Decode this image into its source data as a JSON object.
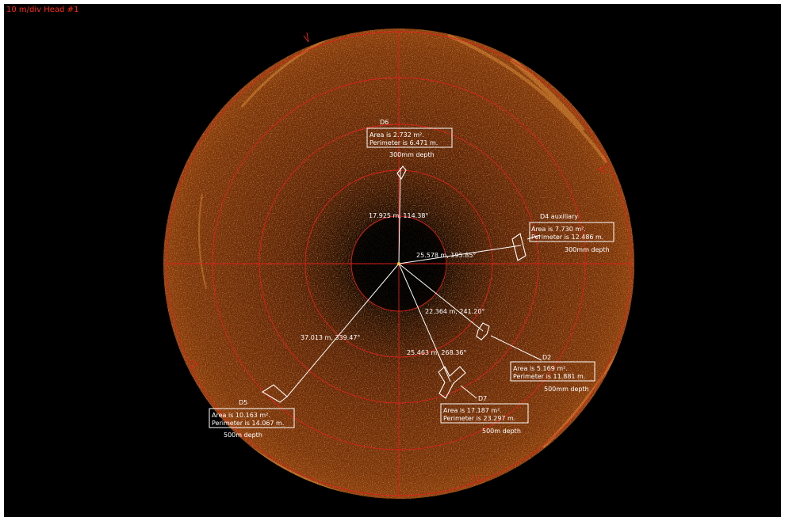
{
  "header": {
    "scale_label": "10 m/div Head #1"
  },
  "colors": {
    "ring": "#e0201a",
    "annotation": "#ffffff",
    "label": "#ff2a1a"
  },
  "center_readouts": {
    "d6": "17.925 m, 114.38°",
    "d4": "25.578 m, 195.85°",
    "d2": "22.364 m, 241.20°",
    "d7": "25.463 m, 268.36°",
    "d5": "37.013 m, 339.47°"
  },
  "markers": {
    "d6": {
      "title": "D6",
      "area": "Area is 2.732 m².",
      "perimeter": "Perimeter is 6.471 m.",
      "depth": "300mm depth"
    },
    "d4": {
      "title": "D4 auxiliary",
      "area": "Area is 7.730 m².",
      "perimeter": "Perimeter is 12.486 m.",
      "depth": "300mm depth"
    },
    "d2": {
      "title": "D2",
      "area": "Area is 5.169 m².",
      "perimeter": "Perimeter is 11.881 m.",
      "depth": "500mm depth"
    },
    "d7": {
      "title": "D7",
      "area": "Area is 17.187 m².",
      "perimeter": "Perimeter is 23.297 m.",
      "depth": "500m depth"
    },
    "d5": {
      "title": "D5",
      "area": "Area is 10.163 m².",
      "perimeter": "Perimeter is 14.067 m.",
      "depth": "500m depth"
    }
  }
}
